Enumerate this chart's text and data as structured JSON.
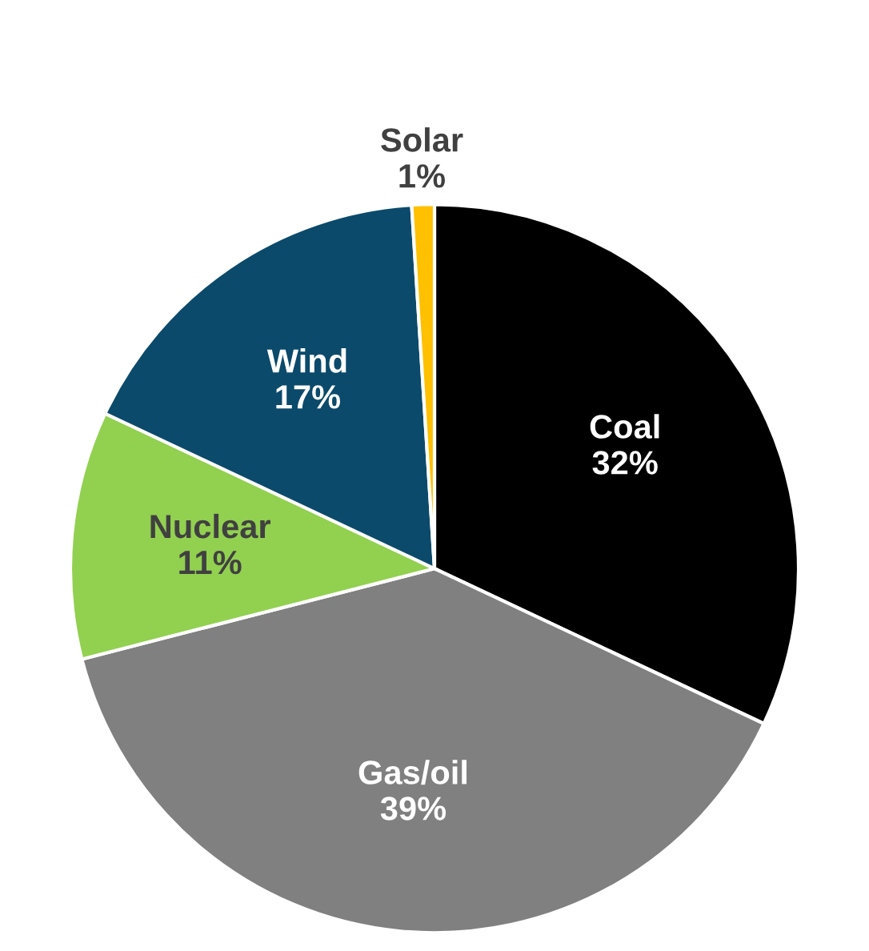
{
  "chart_data": {
    "type": "pie",
    "categories": [
      "Coal",
      "Gas/oil",
      "Nuclear",
      "Wind",
      "Solar"
    ],
    "values": [
      32,
      39,
      11,
      17,
      1
    ],
    "colors": [
      "#000000",
      "#808080",
      "#92d050",
      "#0b4a6b",
      "#ffc000"
    ],
    "value_labels": [
      "32%",
      "39%",
      "11%",
      "17%",
      "1%"
    ],
    "legend": false
  }
}
